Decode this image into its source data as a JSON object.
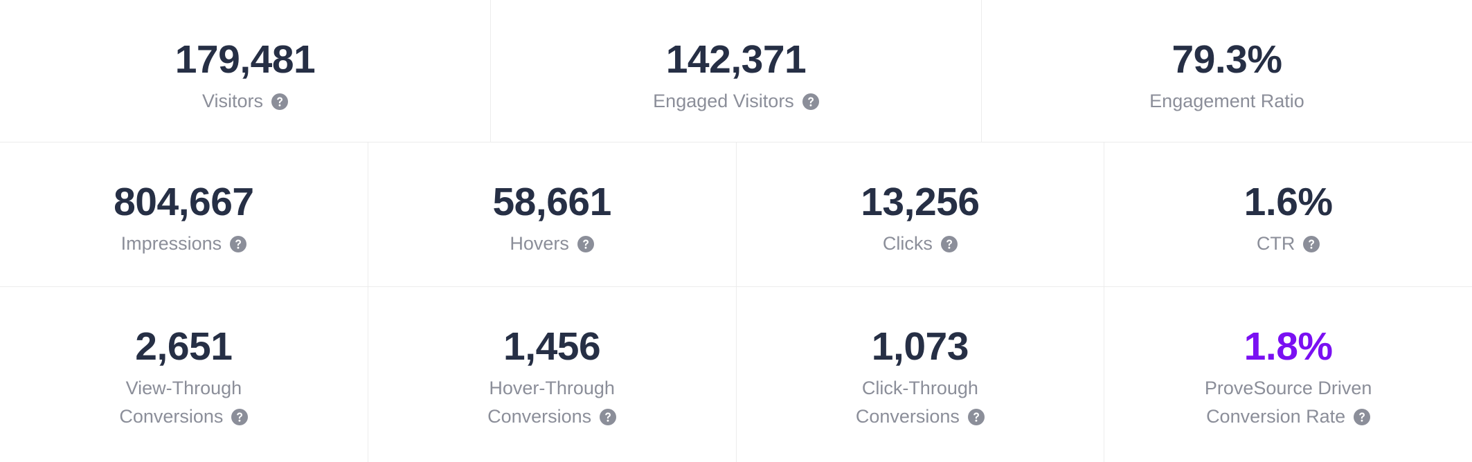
{
  "rows": [
    [
      {
        "value": "179,481",
        "label": [
          "Visitors"
        ],
        "info_icon": true
      },
      {
        "value": "142,371",
        "label": [
          "Engaged Visitors"
        ],
        "info_icon": true
      },
      {
        "value": "79.3%",
        "label": [
          "Engagement Ratio"
        ],
        "info_icon": false
      }
    ],
    [
      {
        "value": "804,667",
        "label": [
          "Impressions"
        ],
        "info_icon": true
      },
      {
        "value": "58,661",
        "label": [
          "Hovers"
        ],
        "info_icon": true
      },
      {
        "value": "13,256",
        "label": [
          "Clicks"
        ],
        "info_icon": true
      },
      {
        "value": "1.6%",
        "label": [
          "CTR"
        ],
        "info_icon": true
      }
    ],
    [
      {
        "value": "2,651",
        "label": [
          "View-Through",
          "Conversions"
        ],
        "info_icon": true
      },
      {
        "value": "1,456",
        "label": [
          "Hover-Through",
          "Conversions"
        ],
        "info_icon": true
      },
      {
        "value": "1,073",
        "label": [
          "Click-Through",
          "Conversions"
        ],
        "info_icon": true
      },
      {
        "value": "1.8%",
        "label": [
          "ProveSource Driven",
          "Conversion Rate"
        ],
        "info_icon": true,
        "color": "#7a10f2"
      }
    ]
  ]
}
